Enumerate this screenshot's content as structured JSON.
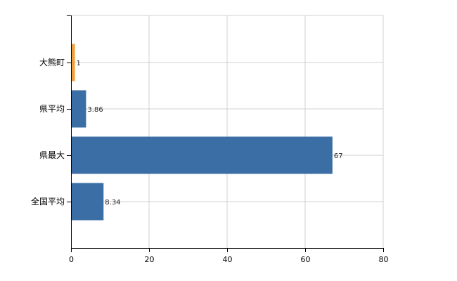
{
  "chart_data": {
    "type": "bar",
    "orientation": "horizontal",
    "categories": [
      "大熊町",
      "県平均",
      "県最大",
      "全国平均"
    ],
    "values": [
      1,
      3.86,
      67,
      8.34
    ],
    "value_labels": [
      "1",
      "3.86",
      "67",
      "8.34"
    ],
    "xlim": [
      0,
      80
    ],
    "x_ticks": [
      "0",
      "20",
      "40",
      "60",
      "80"
    ],
    "grid": true,
    "colors": {
      "highlight": "#f0a040",
      "default": "#3b6ea5",
      "grid": "#d0d0d0",
      "axis": "#000000"
    },
    "highlight_index": 0
  }
}
